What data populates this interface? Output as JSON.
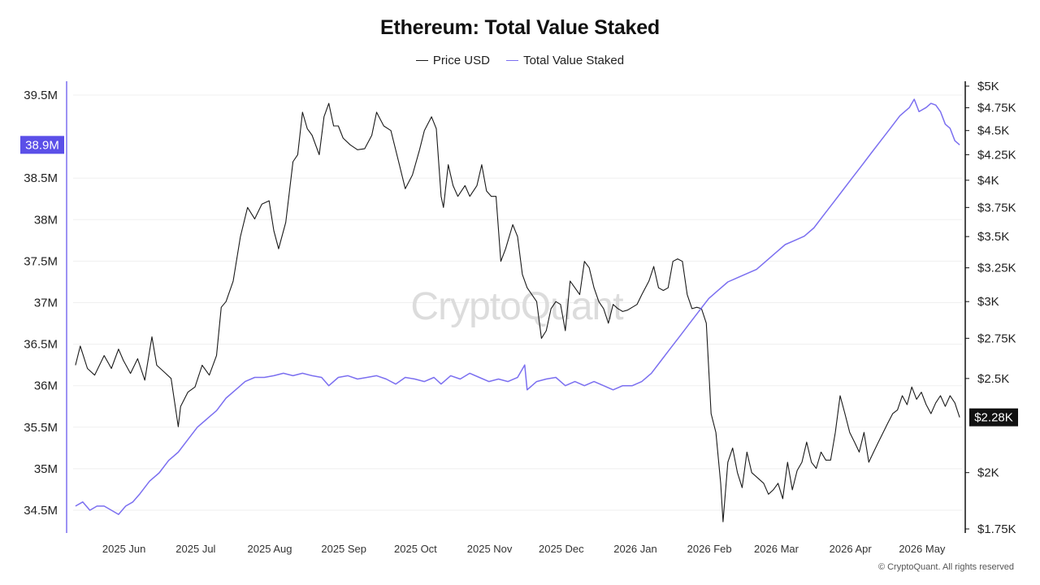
{
  "chart_data": {
    "type": "line",
    "title": "Ethereum: Total Value Staked",
    "legend_position": "top-center",
    "grid": true,
    "watermark": "CryptoQuant",
    "copyright": "© CryptoQuant. All rights reserved",
    "x_ticks": [
      "2025 Jun",
      "2025 Jul",
      "2025 Aug",
      "2025 Sep",
      "2025 Oct",
      "2025 Nov",
      "2025 Dec",
      "2026 Jan",
      "2026 Feb",
      "2026 Mar",
      "2026 Apr",
      "2026 May"
    ],
    "x_range": [
      "2025-05-09",
      "2026-05-16"
    ],
    "left_axis": {
      "ticks": [
        "39.5M",
        "38.5M",
        "38M",
        "37.5M",
        "37M",
        "36.5M",
        "36M",
        "35.5M",
        "35M",
        "34.5M"
      ],
      "range": [
        34.3,
        39.7
      ],
      "unit": "M",
      "current_label": "38.9M",
      "current_value": 38.9,
      "highlight_color": "#5b4fe8"
    },
    "right_axis": {
      "ticks": [
        "$5K",
        "$4.75K",
        "$4.5K",
        "$4.25K",
        "$4K",
        "$3.75K",
        "$3.5K",
        "$3.25K",
        "$3K",
        "$2.75K",
        "$2.5K",
        "$2K",
        "$1.75K"
      ],
      "range": [
        1750,
        5000
      ],
      "scale": "log",
      "unit": "USD",
      "current_label": "$2.28K",
      "current_value": 2280,
      "highlight_color": "#111111"
    },
    "series": [
      {
        "name": "Price USD",
        "axis": "right",
        "color": "#1a1a1a",
        "points": [
          [
            "2025-05-10",
            2580
          ],
          [
            "2025-05-12",
            2700
          ],
          [
            "2025-05-15",
            2560
          ],
          [
            "2025-05-18",
            2520
          ],
          [
            "2025-05-22",
            2640
          ],
          [
            "2025-05-25",
            2560
          ],
          [
            "2025-05-28",
            2680
          ],
          [
            "2025-05-30",
            2610
          ],
          [
            "2025-06-02",
            2530
          ],
          [
            "2025-06-05",
            2620
          ],
          [
            "2025-06-08",
            2490
          ],
          [
            "2025-06-11",
            2760
          ],
          [
            "2025-06-13",
            2580
          ],
          [
            "2025-06-16",
            2540
          ],
          [
            "2025-06-19",
            2500
          ],
          [
            "2025-06-22",
            2230
          ],
          [
            "2025-06-23",
            2340
          ],
          [
            "2025-06-26",
            2420
          ],
          [
            "2025-06-29",
            2450
          ],
          [
            "2025-07-02",
            2580
          ],
          [
            "2025-07-05",
            2520
          ],
          [
            "2025-07-08",
            2640
          ],
          [
            "2025-07-10",
            2960
          ],
          [
            "2025-07-12",
            3000
          ],
          [
            "2025-07-15",
            3150
          ],
          [
            "2025-07-18",
            3500
          ],
          [
            "2025-07-21",
            3750
          ],
          [
            "2025-07-24",
            3650
          ],
          [
            "2025-07-27",
            3780
          ],
          [
            "2025-07-30",
            3810
          ],
          [
            "2025-08-01",
            3550
          ],
          [
            "2025-08-03",
            3400
          ],
          [
            "2025-08-06",
            3620
          ],
          [
            "2025-08-09",
            4180
          ],
          [
            "2025-08-11",
            4250
          ],
          [
            "2025-08-13",
            4700
          ],
          [
            "2025-08-15",
            4520
          ],
          [
            "2025-08-17",
            4450
          ],
          [
            "2025-08-20",
            4250
          ],
          [
            "2025-08-22",
            4650
          ],
          [
            "2025-08-24",
            4800
          ],
          [
            "2025-08-26",
            4550
          ],
          [
            "2025-08-28",
            4550
          ],
          [
            "2025-08-30",
            4420
          ],
          [
            "2025-09-02",
            4350
          ],
          [
            "2025-09-05",
            4300
          ],
          [
            "2025-09-08",
            4310
          ],
          [
            "2025-09-11",
            4450
          ],
          [
            "2025-09-13",
            4700
          ],
          [
            "2025-09-16",
            4550
          ],
          [
            "2025-09-19",
            4500
          ],
          [
            "2025-09-22",
            4200
          ],
          [
            "2025-09-25",
            3920
          ],
          [
            "2025-09-28",
            4050
          ],
          [
            "2025-10-01",
            4300
          ],
          [
            "2025-10-03",
            4500
          ],
          [
            "2025-10-06",
            4650
          ],
          [
            "2025-10-08",
            4520
          ],
          [
            "2025-10-10",
            3850
          ],
          [
            "2025-10-11",
            3750
          ],
          [
            "2025-10-13",
            4150
          ],
          [
            "2025-10-15",
            3950
          ],
          [
            "2025-10-17",
            3850
          ],
          [
            "2025-10-20",
            3950
          ],
          [
            "2025-10-22",
            3850
          ],
          [
            "2025-10-25",
            3950
          ],
          [
            "2025-10-27",
            4150
          ],
          [
            "2025-10-29",
            3900
          ],
          [
            "2025-10-31",
            3850
          ],
          [
            "2025-11-02",
            3850
          ],
          [
            "2025-11-04",
            3300
          ],
          [
            "2025-11-06",
            3400
          ],
          [
            "2025-11-09",
            3600
          ],
          [
            "2025-11-11",
            3500
          ],
          [
            "2025-11-13",
            3200
          ],
          [
            "2025-11-15",
            3100
          ],
          [
            "2025-11-17",
            3050
          ],
          [
            "2025-11-19",
            3000
          ],
          [
            "2025-11-21",
            2750
          ],
          [
            "2025-11-23",
            2800
          ],
          [
            "2025-11-25",
            2950
          ],
          [
            "2025-11-27",
            3000
          ],
          [
            "2025-11-29",
            2980
          ],
          [
            "2025-12-01",
            2800
          ],
          [
            "2025-12-03",
            3150
          ],
          [
            "2025-12-05",
            3100
          ],
          [
            "2025-12-07",
            3050
          ],
          [
            "2025-12-09",
            3300
          ],
          [
            "2025-12-11",
            3250
          ],
          [
            "2025-12-13",
            3100
          ],
          [
            "2025-12-15",
            3000
          ],
          [
            "2025-12-17",
            2950
          ],
          [
            "2025-12-19",
            2850
          ],
          [
            "2025-12-21",
            2980
          ],
          [
            "2025-12-23",
            2950
          ],
          [
            "2025-12-25",
            2930
          ],
          [
            "2025-12-27",
            2940
          ],
          [
            "2025-12-29",
            2960
          ],
          [
            "2025-12-31",
            2980
          ],
          [
            "2026-01-02",
            3050
          ],
          [
            "2026-01-05",
            3150
          ],
          [
            "2026-01-07",
            3260
          ],
          [
            "2026-01-09",
            3100
          ],
          [
            "2026-01-11",
            3080
          ],
          [
            "2026-01-13",
            3100
          ],
          [
            "2026-01-15",
            3300
          ],
          [
            "2026-01-17",
            3320
          ],
          [
            "2026-01-19",
            3300
          ],
          [
            "2026-01-21",
            3050
          ],
          [
            "2026-01-23",
            2950
          ],
          [
            "2026-01-25",
            2960
          ],
          [
            "2026-01-27",
            2950
          ],
          [
            "2026-01-29",
            2850
          ],
          [
            "2026-01-31",
            2300
          ],
          [
            "2026-02-02",
            2200
          ],
          [
            "2026-02-04",
            1950
          ],
          [
            "2026-02-05",
            1780
          ],
          [
            "2026-02-07",
            2050
          ],
          [
            "2026-02-09",
            2120
          ],
          [
            "2026-02-11",
            2000
          ],
          [
            "2026-02-13",
            1930
          ],
          [
            "2026-02-15",
            2100
          ],
          [
            "2026-02-17",
            2000
          ],
          [
            "2026-02-19",
            1980
          ],
          [
            "2026-02-22",
            1950
          ],
          [
            "2026-02-24",
            1900
          ],
          [
            "2026-02-26",
            1920
          ],
          [
            "2026-02-28",
            1950
          ],
          [
            "2026-03-02",
            1880
          ],
          [
            "2026-03-04",
            2050
          ],
          [
            "2026-03-06",
            1920
          ],
          [
            "2026-03-08",
            2010
          ],
          [
            "2026-03-10",
            2050
          ],
          [
            "2026-03-12",
            2150
          ],
          [
            "2026-03-14",
            2050
          ],
          [
            "2026-03-16",
            2020
          ],
          [
            "2026-03-18",
            2100
          ],
          [
            "2026-03-20",
            2060
          ],
          [
            "2026-03-22",
            2060
          ],
          [
            "2026-03-24",
            2200
          ],
          [
            "2026-03-26",
            2400
          ],
          [
            "2026-03-28",
            2300
          ],
          [
            "2026-03-30",
            2200
          ],
          [
            "2026-04-01",
            2150
          ],
          [
            "2026-04-03",
            2100
          ],
          [
            "2026-04-05",
            2200
          ],
          [
            "2026-04-07",
            2050
          ],
          [
            "2026-04-09",
            2100
          ],
          [
            "2026-04-11",
            2150
          ],
          [
            "2026-04-13",
            2200
          ],
          [
            "2026-04-15",
            2250
          ],
          [
            "2026-04-17",
            2300
          ],
          [
            "2026-04-19",
            2320
          ],
          [
            "2026-04-21",
            2400
          ],
          [
            "2026-04-23",
            2350
          ],
          [
            "2026-04-25",
            2450
          ],
          [
            "2026-04-27",
            2380
          ],
          [
            "2026-04-29",
            2420
          ],
          [
            "2026-05-01",
            2350
          ],
          [
            "2026-05-03",
            2300
          ],
          [
            "2026-05-05",
            2360
          ],
          [
            "2026-05-07",
            2400
          ],
          [
            "2026-05-09",
            2340
          ],
          [
            "2026-05-11",
            2400
          ],
          [
            "2026-05-13",
            2360
          ],
          [
            "2026-05-15",
            2280
          ]
        ]
      },
      {
        "name": "Total Value Staked",
        "axis": "left",
        "color": "#7b6ff0",
        "points": [
          [
            "2025-05-10",
            34.55
          ],
          [
            "2025-05-13",
            34.6
          ],
          [
            "2025-05-16",
            34.5
          ],
          [
            "2025-05-19",
            34.55
          ],
          [
            "2025-05-22",
            34.55
          ],
          [
            "2025-05-25",
            34.5
          ],
          [
            "2025-05-28",
            34.45
          ],
          [
            "2025-05-31",
            34.55
          ],
          [
            "2025-06-03",
            34.6
          ],
          [
            "2025-06-06",
            34.7
          ],
          [
            "2025-06-10",
            34.85
          ],
          [
            "2025-06-14",
            34.95
          ],
          [
            "2025-06-18",
            35.1
          ],
          [
            "2025-06-22",
            35.2
          ],
          [
            "2025-06-26",
            35.35
          ],
          [
            "2025-06-30",
            35.5
          ],
          [
            "2025-07-04",
            35.6
          ],
          [
            "2025-07-08",
            35.7
          ],
          [
            "2025-07-12",
            35.85
          ],
          [
            "2025-07-16",
            35.95
          ],
          [
            "2025-07-20",
            36.05
          ],
          [
            "2025-07-24",
            36.1
          ],
          [
            "2025-07-28",
            36.1
          ],
          [
            "2025-08-01",
            36.12
          ],
          [
            "2025-08-05",
            36.15
          ],
          [
            "2025-08-09",
            36.12
          ],
          [
            "2025-08-13",
            36.15
          ],
          [
            "2025-08-17",
            36.12
          ],
          [
            "2025-08-21",
            36.1
          ],
          [
            "2025-08-24",
            36.0
          ],
          [
            "2025-08-28",
            36.1
          ],
          [
            "2025-09-01",
            36.12
          ],
          [
            "2025-09-05",
            36.08
          ],
          [
            "2025-09-09",
            36.1
          ],
          [
            "2025-09-13",
            36.12
          ],
          [
            "2025-09-17",
            36.08
          ],
          [
            "2025-09-21",
            36.02
          ],
          [
            "2025-09-25",
            36.1
          ],
          [
            "2025-09-29",
            36.08
          ],
          [
            "2025-10-03",
            36.05
          ],
          [
            "2025-10-07",
            36.1
          ],
          [
            "2025-10-10",
            36.02
          ],
          [
            "2025-10-14",
            36.12
          ],
          [
            "2025-10-18",
            36.08
          ],
          [
            "2025-10-22",
            36.15
          ],
          [
            "2025-10-26",
            36.1
          ],
          [
            "2025-10-30",
            36.05
          ],
          [
            "2025-11-03",
            36.08
          ],
          [
            "2025-11-07",
            36.05
          ],
          [
            "2025-11-11",
            36.1
          ],
          [
            "2025-11-14",
            36.25
          ],
          [
            "2025-11-15",
            35.95
          ],
          [
            "2025-11-19",
            36.05
          ],
          [
            "2025-11-23",
            36.08
          ],
          [
            "2025-11-27",
            36.1
          ],
          [
            "2025-12-01",
            36.0
          ],
          [
            "2025-12-05",
            36.05
          ],
          [
            "2025-12-09",
            36.0
          ],
          [
            "2025-12-13",
            36.05
          ],
          [
            "2025-12-17",
            36.0
          ],
          [
            "2025-12-21",
            35.95
          ],
          [
            "2025-12-25",
            36.0
          ],
          [
            "2025-12-29",
            36.0
          ],
          [
            "2026-01-02",
            36.05
          ],
          [
            "2026-01-06",
            36.15
          ],
          [
            "2026-01-10",
            36.3
          ],
          [
            "2026-01-14",
            36.45
          ],
          [
            "2026-01-18",
            36.6
          ],
          [
            "2026-01-22",
            36.75
          ],
          [
            "2026-01-26",
            36.9
          ],
          [
            "2026-01-30",
            37.05
          ],
          [
            "2026-02-03",
            37.15
          ],
          [
            "2026-02-07",
            37.25
          ],
          [
            "2026-02-11",
            37.3
          ],
          [
            "2026-02-15",
            37.35
          ],
          [
            "2026-02-19",
            37.4
          ],
          [
            "2026-02-23",
            37.5
          ],
          [
            "2026-02-27",
            37.6
          ],
          [
            "2026-03-03",
            37.7
          ],
          [
            "2026-03-07",
            37.75
          ],
          [
            "2026-03-11",
            37.8
          ],
          [
            "2026-03-15",
            37.9
          ],
          [
            "2026-03-19",
            38.05
          ],
          [
            "2026-03-23",
            38.2
          ],
          [
            "2026-03-27",
            38.35
          ],
          [
            "2026-03-31",
            38.5
          ],
          [
            "2026-04-04",
            38.65
          ],
          [
            "2026-04-08",
            38.8
          ],
          [
            "2026-04-12",
            38.95
          ],
          [
            "2026-04-16",
            39.1
          ],
          [
            "2026-04-20",
            39.25
          ],
          [
            "2026-04-24",
            39.35
          ],
          [
            "2026-04-26",
            39.45
          ],
          [
            "2026-04-28",
            39.3
          ],
          [
            "2026-05-01",
            39.35
          ],
          [
            "2026-05-03",
            39.4
          ],
          [
            "2026-05-05",
            39.38
          ],
          [
            "2026-05-07",
            39.3
          ],
          [
            "2026-05-09",
            39.15
          ],
          [
            "2026-05-11",
            39.1
          ],
          [
            "2026-05-13",
            38.95
          ],
          [
            "2026-05-15",
            38.9
          ]
        ]
      }
    ]
  }
}
